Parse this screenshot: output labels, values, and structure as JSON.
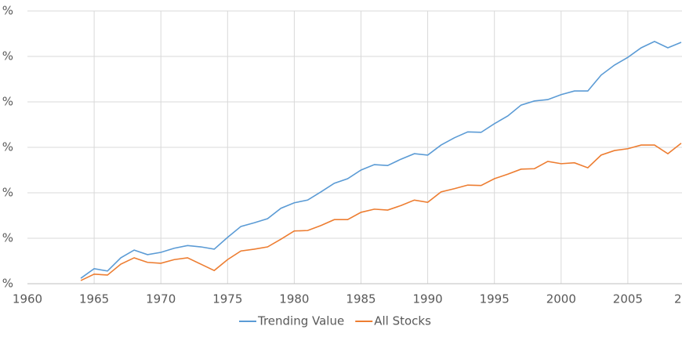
{
  "chart_data": {
    "type": "line",
    "x": [
      1964,
      1965,
      1966,
      1967,
      1968,
      1969,
      1970,
      1971,
      1972,
      1973,
      1974,
      1975,
      1976,
      1977,
      1978,
      1979,
      1980,
      1981,
      1982,
      1983,
      1984,
      1985,
      1986,
      1987,
      1988,
      1989,
      1990,
      1991,
      1992,
      1993,
      1994,
      1995,
      1996,
      1997,
      1998,
      1999,
      2000,
      2001,
      2002,
      2003,
      2004,
      2005,
      2006,
      2007,
      2008,
      2009
    ],
    "series": [
      {
        "name": "Trending Value",
        "color": "#5b9bd5",
        "values": [
          12,
          33,
          28,
          57,
          74,
          64,
          69,
          78,
          84,
          81,
          76,
          102,
          126,
          134,
          143,
          166,
          178,
          184,
          202,
          221,
          231,
          250,
          262,
          260,
          274,
          286,
          283,
          305,
          321,
          334,
          333,
          352,
          369,
          393,
          402,
          405,
          416,
          424,
          424,
          459,
          481,
          498,
          519,
          533,
          519,
          531
        ]
      },
      {
        "name": "All Stocks",
        "color": "#ed7d31",
        "values": [
          7,
          21,
          19,
          43,
          57,
          47,
          45,
          53,
          57,
          43,
          29,
          53,
          72,
          76,
          81,
          98,
          116,
          117,
          128,
          141,
          141,
          157,
          164,
          162,
          172,
          184,
          179,
          202,
          209,
          217,
          216,
          231,
          241,
          252,
          253,
          269,
          264,
          266,
          255,
          283,
          293,
          297,
          305,
          305,
          286,
          309
        ]
      }
    ],
    "xlim": [
      1960,
      2010
    ],
    "xticks": [
      1960,
      1965,
      1970,
      1975,
      1980,
      1985,
      1990,
      1995,
      2000,
      2005,
      {
        "value": 2010,
        "label": "2"
      }
    ],
    "ylim": [
      0,
      600
    ],
    "yticks": [
      {
        "value": 0,
        "label": "%"
      },
      {
        "value": 100,
        "label": "%"
      },
      {
        "value": 200,
        "label": "%"
      },
      {
        "value": 300,
        "label": "%"
      },
      {
        "value": 400,
        "label": "%"
      },
      {
        "value": 500,
        "label": "%"
      },
      {
        "value": 600,
        "label": "%"
      }
    ],
    "grid": true,
    "legend": "bottom"
  }
}
